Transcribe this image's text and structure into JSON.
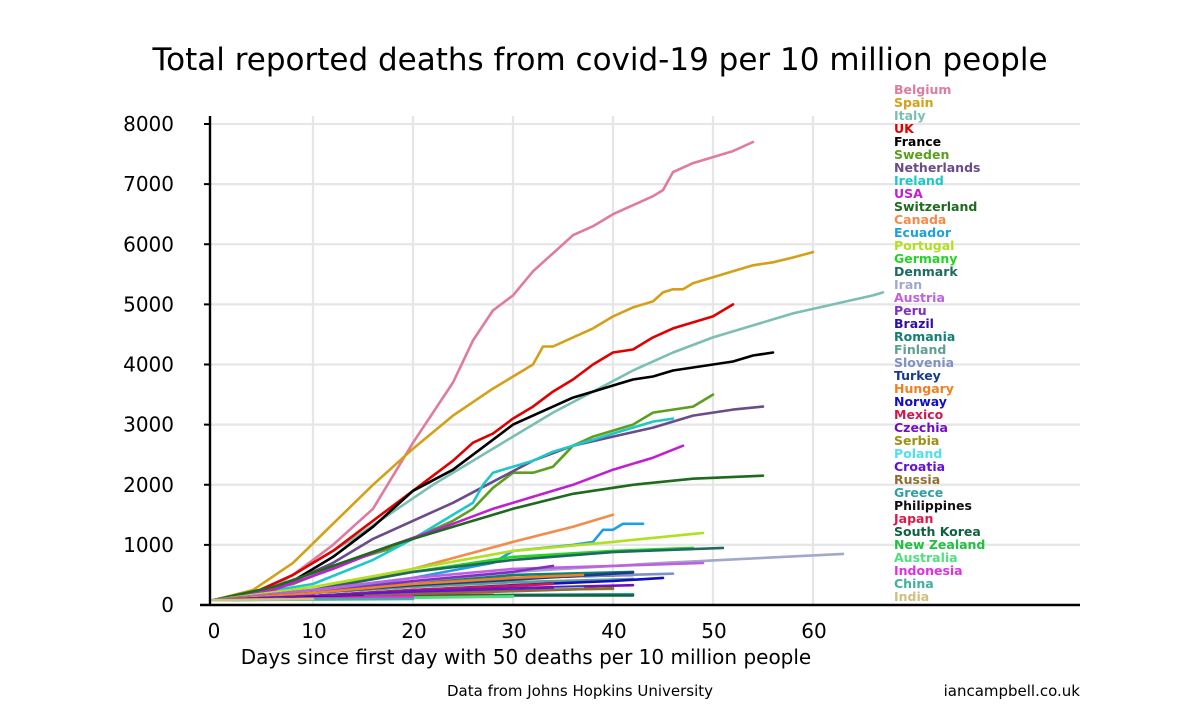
{
  "title": "Total reported deaths from covid-19 per 10 million people",
  "footer": {
    "source": "Data from Johns Hopkins University",
    "credit": "iancampbell.co.uk"
  },
  "chart_data": {
    "type": "line",
    "xlabel": "Days since first day with 50 deaths per 10 million people",
    "ylabel": "",
    "xlim": [
      -1,
      86
    ],
    "ylim": [
      0,
      8200
    ],
    "xticks": [
      0,
      10,
      20,
      30,
      40,
      50,
      60
    ],
    "yticks": [
      0,
      1000,
      2000,
      3000,
      4000,
      5000,
      6000,
      7000,
      8000
    ],
    "grid": true,
    "legend": "right",
    "series": [
      {
        "name": "Belgium",
        "color": "#e07ba0",
        "x": [
          0,
          4,
          8,
          12,
          16,
          20,
          24,
          26,
          28,
          30,
          32,
          34,
          36,
          38,
          40,
          42,
          44,
          45,
          46,
          48,
          50,
          52,
          54
        ],
        "y": [
          80,
          180,
          500,
          1000,
          1600,
          2700,
          3700,
          4400,
          4900,
          5150,
          5550,
          5850,
          6150,
          6300,
          6500,
          6650,
          6800,
          6900,
          7200,
          7350,
          7450,
          7550,
          7700
        ]
      },
      {
        "name": "Spain",
        "color": "#d4a017",
        "x": [
          0,
          4,
          8,
          12,
          16,
          20,
          24,
          28,
          32,
          33,
          34,
          36,
          38,
          40,
          42,
          44,
          45,
          46,
          47,
          48,
          50,
          52,
          54,
          56,
          58,
          60
        ],
        "y": [
          80,
          250,
          700,
          1350,
          2000,
          2600,
          3150,
          3600,
          4000,
          4300,
          4300,
          4450,
          4600,
          4800,
          4950,
          5050,
          5200,
          5250,
          5250,
          5350,
          5450,
          5550,
          5650,
          5700,
          5780,
          5870
        ]
      },
      {
        "name": "Italy",
        "color": "#7abfb2",
        "x": [
          0,
          6,
          10,
          14,
          18,
          22,
          26,
          30,
          34,
          38,
          42,
          46,
          50,
          54,
          58,
          62,
          66,
          67
        ],
        "y": [
          80,
          300,
          700,
          1100,
          1550,
          2000,
          2400,
          2800,
          3200,
          3550,
          3900,
          4200,
          4450,
          4650,
          4850,
          5000,
          5150,
          5200
        ]
      },
      {
        "name": "UK",
        "color": "#e00000",
        "x": [
          0,
          4,
          8,
          12,
          16,
          20,
          24,
          26,
          28,
          30,
          32,
          34,
          36,
          38,
          40,
          42,
          44,
          46,
          48,
          50,
          52
        ],
        "y": [
          80,
          200,
          500,
          900,
          1400,
          1900,
          2400,
          2700,
          2850,
          3100,
          3300,
          3550,
          3750,
          4000,
          4200,
          4250,
          4450,
          4600,
          4700,
          4800,
          5000
        ]
      },
      {
        "name": "France",
        "color": "#000000",
        "x": [
          0,
          4,
          8,
          12,
          16,
          20,
          24,
          26,
          28,
          30,
          32,
          34,
          36,
          38,
          40,
          42,
          44,
          46,
          48,
          50,
          52,
          54,
          56
        ],
        "y": [
          80,
          200,
          400,
          800,
          1300,
          1900,
          2250,
          2500,
          2750,
          3000,
          3150,
          3300,
          3450,
          3550,
          3650,
          3750,
          3800,
          3900,
          3950,
          4000,
          4050,
          4150,
          4200
        ]
      },
      {
        "name": "Sweden",
        "color": "#5aa01e",
        "x": [
          0,
          8,
          14,
          18,
          20,
          22,
          24,
          26,
          28,
          30,
          32,
          34,
          36,
          38,
          40,
          42,
          44,
          46,
          48,
          50
        ],
        "y": [
          80,
          350,
          750,
          950,
          1100,
          1250,
          1400,
          1600,
          1950,
          2200,
          2200,
          2300,
          2650,
          2800,
          2900,
          3000,
          3200,
          3250,
          3300,
          3500
        ]
      },
      {
        "name": "Netherlands",
        "color": "#6a4c8a",
        "x": [
          0,
          6,
          12,
          16,
          20,
          24,
          28,
          32,
          36,
          40,
          44,
          48,
          52,
          55
        ],
        "y": [
          80,
          250,
          700,
          1100,
          1400,
          1700,
          2050,
          2400,
          2650,
          2800,
          2950,
          3150,
          3250,
          3300
        ]
      },
      {
        "name": "Ireland",
        "color": "#1cc8c8",
        "x": [
          0,
          10,
          16,
          20,
          24,
          26,
          27,
          28,
          30,
          32,
          34,
          36,
          38,
          40,
          42,
          44,
          46
        ],
        "y": [
          80,
          350,
          750,
          1100,
          1500,
          1700,
          2000,
          2200,
          2300,
          2400,
          2550,
          2650,
          2750,
          2850,
          2950,
          3050,
          3100
        ]
      },
      {
        "name": "USA",
        "color": "#c020d0",
        "x": [
          0,
          6,
          12,
          18,
          24,
          28,
          32,
          36,
          40,
          44,
          47
        ],
        "y": [
          80,
          250,
          600,
          1000,
          1350,
          1600,
          1800,
          2000,
          2250,
          2450,
          2650
        ]
      },
      {
        "name": "Switzerland",
        "color": "#1e6a1e",
        "x": [
          0,
          6,
          12,
          18,
          24,
          30,
          36,
          42,
          48,
          55
        ],
        "y": [
          80,
          300,
          650,
          1000,
          1300,
          1600,
          1850,
          2000,
          2100,
          2150
        ]
      },
      {
        "name": "Canada",
        "color": "#f28c4a",
        "x": [
          0,
          10,
          20,
          30,
          36,
          40
        ],
        "y": [
          80,
          250,
          600,
          1050,
          1300,
          1500
        ]
      },
      {
        "name": "Ecuador",
        "color": "#1ea0e0",
        "x": [
          0,
          10,
          20,
          28,
          30,
          36,
          38,
          39,
          40,
          41,
          42,
          43
        ],
        "y": [
          80,
          200,
          450,
          700,
          900,
          1000,
          1050,
          1250,
          1250,
          1350,
          1350,
          1350
        ]
      },
      {
        "name": "Portugal",
        "color": "#b0e020",
        "x": [
          0,
          10,
          20,
          30,
          40,
          49
        ],
        "y": [
          80,
          300,
          600,
          900,
          1050,
          1200
        ]
      },
      {
        "name": "Germany",
        "color": "#22d622",
        "x": [
          0,
          10,
          20,
          30,
          40,
          48
        ],
        "y": [
          80,
          250,
          550,
          800,
          900,
          950
        ]
      },
      {
        "name": "Denmark",
        "color": "#1e6a5e",
        "x": [
          0,
          10,
          20,
          30,
          40,
          51
        ],
        "y": [
          80,
          250,
          550,
          750,
          880,
          950
        ]
      },
      {
        "name": "Iran",
        "color": "#a0a8cc",
        "x": [
          0,
          15,
          30,
          45,
          63
        ],
        "y": [
          80,
          300,
          550,
          700,
          850
        ]
      },
      {
        "name": "Austria",
        "color": "#c060e0",
        "x": [
          0,
          10,
          20,
          30,
          40,
          49
        ],
        "y": [
          80,
          250,
          450,
          600,
          650,
          700
        ]
      },
      {
        "name": "Peru",
        "color": "#8030c0",
        "x": [
          0,
          10,
          20,
          30,
          34
        ],
        "y": [
          80,
          200,
          400,
          550,
          650
        ]
      },
      {
        "name": "Brazil",
        "color": "#3010a0",
        "x": [
          0,
          10,
          20,
          30,
          42
        ],
        "y": [
          80,
          200,
          350,
          450,
          500
        ]
      },
      {
        "name": "Romania",
        "color": "#108070",
        "x": [
          0,
          10,
          20,
          30,
          42
        ],
        "y": [
          80,
          200,
          350,
          500,
          550
        ]
      },
      {
        "name": "Finland",
        "color": "#60a090",
        "x": [
          0,
          10,
          20,
          30,
          42
        ],
        "y": [
          80,
          200,
          300,
          380,
          430
        ]
      },
      {
        "name": "Slovenia",
        "color": "#8090c0",
        "x": [
          0,
          10,
          20,
          30,
          46
        ],
        "y": [
          80,
          200,
          350,
          450,
          520
        ]
      },
      {
        "name": "Turkey",
        "color": "#1a3a8a",
        "x": [
          0,
          10,
          20,
          30,
          36,
          38,
          40,
          42
        ],
        "y": [
          80,
          200,
          330,
          420,
          480,
          500,
          520,
          540
        ]
      },
      {
        "name": "Hungary",
        "color": "#f08020",
        "x": [
          0,
          10,
          20,
          30,
          37
        ],
        "y": [
          80,
          200,
          350,
          450,
          500
        ]
      },
      {
        "name": "Norway",
        "color": "#1010c0",
        "x": [
          0,
          10,
          20,
          30,
          40,
          45
        ],
        "y": [
          80,
          150,
          250,
          330,
          400,
          450
        ]
      },
      {
        "name": "Mexico",
        "color": "#d01850",
        "x": [
          0,
          10,
          20,
          34
        ],
        "y": [
          80,
          150,
          250,
          350
        ]
      },
      {
        "name": "Czechia",
        "color": "#7010c0",
        "x": [
          0,
          10,
          20,
          30,
          42
        ],
        "y": [
          80,
          150,
          230,
          280,
          330
        ]
      },
      {
        "name": "Serbia",
        "color": "#a09010",
        "x": [
          0,
          10,
          20,
          30,
          40
        ],
        "y": [
          80,
          150,
          220,
          250,
          270
        ]
      },
      {
        "name": "Poland",
        "color": "#50e0f0",
        "x": [
          0,
          10,
          20,
          30,
          37
        ],
        "y": [
          80,
          130,
          200,
          250,
          280
        ]
      },
      {
        "name": "Croatia",
        "color": "#6010e0",
        "x": [
          0,
          10,
          20,
          30,
          34
        ],
        "y": [
          80,
          150,
          220,
          250,
          270
        ]
      },
      {
        "name": "Russia",
        "color": "#907030",
        "x": [
          0,
          10,
          20,
          30,
          40
        ],
        "y": [
          80,
          120,
          180,
          230,
          280
        ]
      },
      {
        "name": "Greece",
        "color": "#30a0a0",
        "x": [
          0,
          10,
          20,
          30,
          42
        ],
        "y": [
          80,
          120,
          150,
          170,
          180
        ]
      },
      {
        "name": "Philippines",
        "color": "#101010",
        "x": [
          0,
          5,
          10,
          15
        ],
        "y": [
          80,
          100,
          120,
          140
        ]
      },
      {
        "name": "Japan",
        "color": "#e01848",
        "x": [
          0,
          10,
          20,
          28
        ],
        "y": [
          80,
          110,
          150,
          170
        ]
      },
      {
        "name": "South Korea",
        "color": "#106040",
        "x": [
          0,
          10,
          20,
          30,
          42
        ],
        "y": [
          80,
          110,
          140,
          160,
          160
        ]
      },
      {
        "name": "New Zealand",
        "color": "#20c040",
        "x": [
          0,
          10,
          20,
          30
        ],
        "y": [
          80,
          100,
          130,
          150
        ]
      },
      {
        "name": "Australia",
        "color": "#50e080",
        "x": [
          0,
          10,
          20,
          30
        ],
        "y": [
          80,
          100,
          120,
          140
        ]
      },
      {
        "name": "Indonesia",
        "color": "#e030e0",
        "x": [
          0,
          10,
          20
        ],
        "y": [
          80,
          110,
          140
        ]
      },
      {
        "name": "China",
        "color": "#40b0a0",
        "x": [
          0,
          10,
          20
        ],
        "y": [
          80,
          90,
          100
        ]
      },
      {
        "name": "India",
        "color": "#d0c080",
        "x": [
          0,
          5,
          10
        ],
        "y": [
          80,
          90,
          100
        ]
      }
    ]
  }
}
